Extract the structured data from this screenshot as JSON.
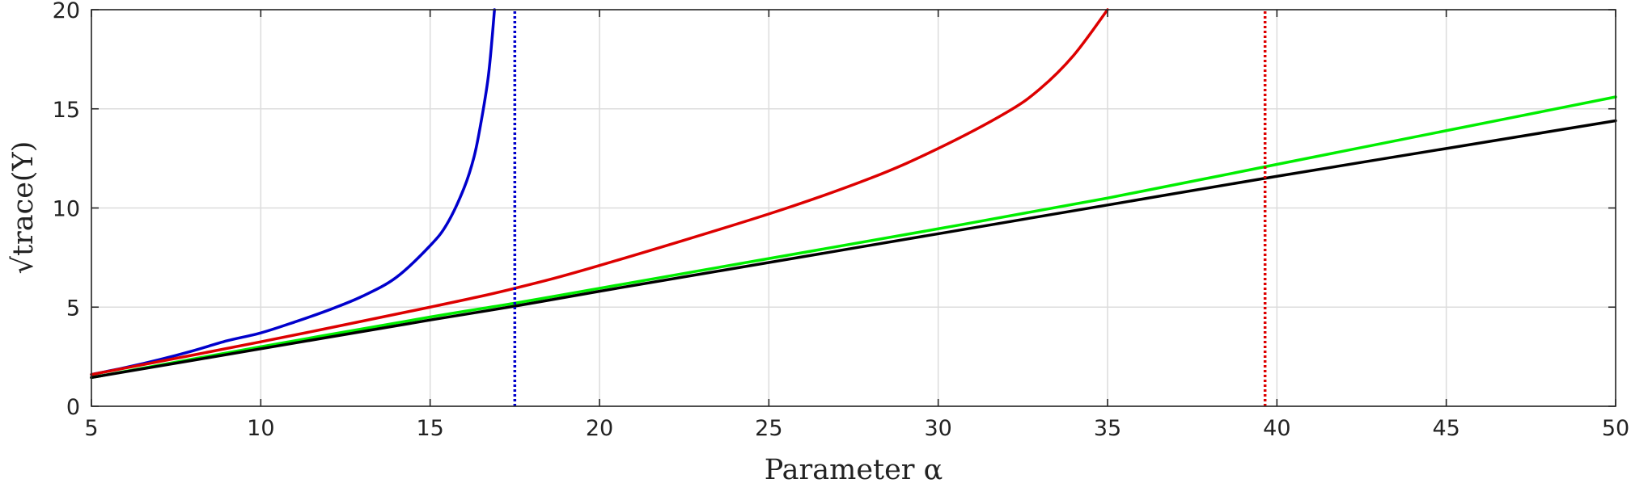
{
  "chart_data": {
    "type": "line",
    "xlabel": "Parameter α",
    "ylabel": "√trace(Y)",
    "xlim": [
      5,
      50
    ],
    "ylim": [
      0,
      20
    ],
    "xticks": [
      5,
      10,
      15,
      20,
      25,
      30,
      35,
      40,
      45,
      50
    ],
    "yticks": [
      0,
      5,
      10,
      15,
      20
    ],
    "grid": true,
    "series": [
      {
        "color": "#0000cc",
        "style": "solid",
        "x": [
          5,
          6,
          7,
          8,
          9,
          10,
          11,
          12,
          13,
          14,
          15,
          15.5,
          16,
          16.3,
          16.5,
          16.7,
          16.8,
          16.9
        ],
        "y": [
          1.6,
          1.95,
          2.35,
          2.8,
          3.3,
          3.7,
          4.25,
          4.85,
          5.55,
          6.5,
          8.1,
          9.2,
          11.0,
          12.6,
          14.3,
          16.4,
          18.0,
          20.0
        ]
      },
      {
        "color": "#dd0000",
        "style": "solid",
        "x": [
          5,
          10,
          15,
          17.5,
          20,
          25,
          28,
          30,
          32,
          33,
          34,
          35
        ],
        "y": [
          1.6,
          3.25,
          5.0,
          5.95,
          7.1,
          9.7,
          11.5,
          13.0,
          14.8,
          16.0,
          17.7,
          20.0
        ]
      },
      {
        "color": "#00ee00",
        "style": "solid",
        "x": [
          5,
          10,
          15,
          17.5,
          20,
          25,
          30,
          35,
          40,
          45,
          50
        ],
        "y": [
          1.45,
          3.0,
          4.5,
          5.2,
          5.95,
          7.45,
          8.95,
          10.5,
          12.2,
          13.9,
          15.6
        ]
      },
      {
        "color": "#000000",
        "style": "solid",
        "x": [
          5,
          10,
          15,
          17.5,
          20,
          25,
          30,
          35,
          40,
          45,
          50
        ],
        "y": [
          1.45,
          2.9,
          4.35,
          5.05,
          5.8,
          7.25,
          8.7,
          10.15,
          11.6,
          13.0,
          14.4
        ]
      },
      {
        "color": "#0000cc",
        "style": "dotted",
        "x": [
          17.5,
          17.5
        ],
        "y": [
          0,
          20
        ]
      },
      {
        "color": "#dd0000",
        "style": "dotted",
        "x": [
          39.65,
          39.65
        ],
        "y": [
          0,
          20
        ]
      }
    ]
  }
}
